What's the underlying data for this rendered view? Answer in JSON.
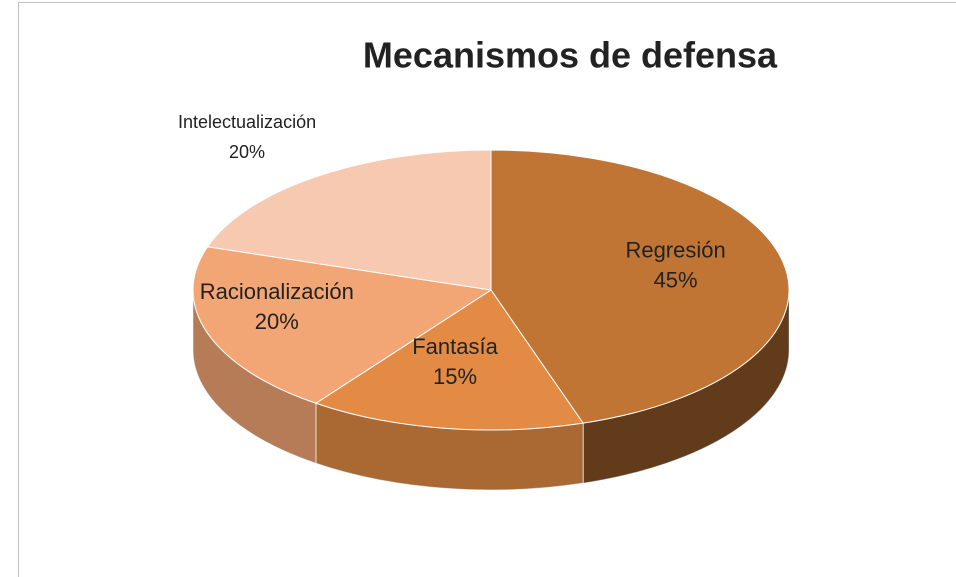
{
  "chart_data": {
    "type": "pie3d",
    "title": "Mecanismos de defensa",
    "categories": [
      "Regresión",
      "Fantasía",
      "Racionalización",
      "Intelectualización"
    ],
    "values": [
      45,
      15,
      20,
      20
    ],
    "value_labels": [
      "45%",
      "15%",
      "20%",
      "20%"
    ],
    "colors": [
      "#c07535",
      "#e38b45",
      "#f2a675",
      "#f7c9b0"
    ]
  }
}
